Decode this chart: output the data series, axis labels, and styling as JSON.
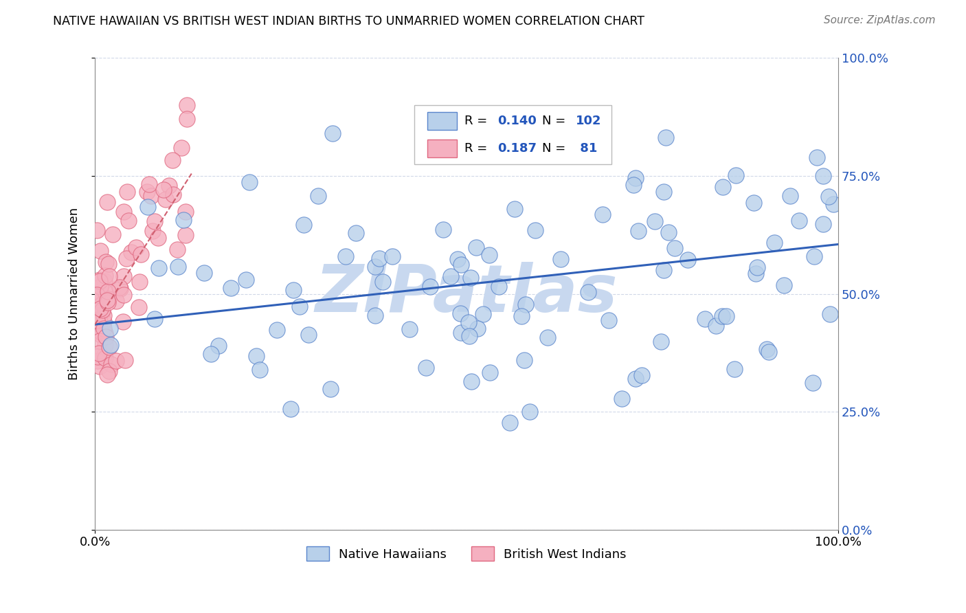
{
  "title": "NATIVE HAWAIIAN VS BRITISH WEST INDIAN BIRTHS TO UNMARRIED WOMEN CORRELATION CHART",
  "source": "Source: ZipAtlas.com",
  "ylabel": "Births to Unmarried Women",
  "blue_R": "0.140",
  "blue_N": "102",
  "pink_R": "0.187",
  "pink_N": " 81",
  "blue_color": "#b8d0ea",
  "pink_color": "#f5b0c0",
  "blue_edge_color": "#5a85cc",
  "pink_edge_color": "#e06880",
  "blue_line_color": "#3060b8",
  "pink_line_color": "#d06070",
  "watermark_color": "#c8d8ef",
  "legend_label_blue": "Native Hawaiians",
  "legend_label_pink": "British West Indians",
  "blue_trend": [
    0.0,
    1.0,
    0.435,
    0.605
  ],
  "pink_trend": [
    0.0,
    0.13,
    0.435,
    0.755
  ]
}
